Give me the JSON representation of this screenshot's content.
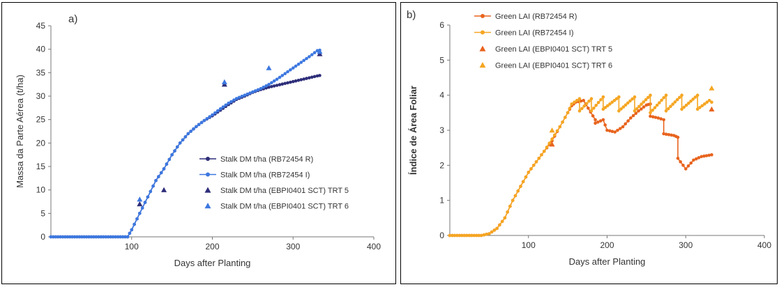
{
  "chart_data": [
    {
      "type": "line",
      "panel_label": "a)",
      "xlabel": "Days after Planting",
      "ylabel": "Massa da Parte Aérea (t/ha)",
      "xlim": [
        0,
        400
      ],
      "ylim": [
        0,
        45
      ],
      "x_ticks": [
        "100",
        "200",
        "300",
        "400"
      ],
      "y_ticks": [
        "0",
        "5",
        "10",
        "15",
        "20",
        "25",
        "30",
        "35",
        "40",
        "45"
      ],
      "grid": false,
      "legend_position": "right",
      "series": [
        {
          "name": "Stalk DM t/ha (RB72454 R)",
          "kind": "line-marker",
          "color": "#2e2e7a",
          "x": [
            0,
            50,
            95,
            100,
            110,
            120,
            130,
            140,
            150,
            160,
            170,
            180,
            190,
            200,
            210,
            220,
            230,
            240,
            250,
            260,
            270,
            280,
            290,
            300,
            310,
            320,
            330,
            333
          ],
          "y": [
            0,
            0,
            0,
            1.5,
            5,
            8.5,
            12,
            14.5,
            17.5,
            20,
            22,
            23.5,
            24.8,
            25.8,
            27,
            28.2,
            29.3,
            30,
            30.8,
            31.4,
            31.9,
            32.3,
            32.7,
            33.1,
            33.5,
            33.9,
            34.3,
            34.4
          ]
        },
        {
          "name": "Stalk DM t/ha (RB72454 I)",
          "kind": "line-marker",
          "color": "#3d78e0",
          "x": [
            0,
            50,
            95,
            100,
            110,
            120,
            130,
            140,
            150,
            160,
            170,
            180,
            190,
            200,
            210,
            220,
            230,
            240,
            250,
            260,
            270,
            280,
            290,
            300,
            310,
            320,
            330,
            333
          ],
          "y": [
            0,
            0,
            0,
            1.5,
            5,
            8.5,
            12,
            14.5,
            17.5,
            20,
            22,
            23.5,
            24.8,
            26,
            27.3,
            28.5,
            29.5,
            30.2,
            30.9,
            31.6,
            32.5,
            33.6,
            34.8,
            36,
            37.2,
            38.4,
            39.7,
            39.8
          ]
        },
        {
          "name": "Stalk DM t/ha  (EBPI0401 SCT) TRT 5",
          "kind": "triangle",
          "color": "#2e2e7a",
          "x": [
            110,
            140,
            215,
            333
          ],
          "y": [
            7,
            10,
            32.5,
            39
          ]
        },
        {
          "name": "Stalk DM t/ha  (EBPI0401 SCT) TRT 6",
          "kind": "triangle",
          "color": "#3d78e0",
          "x": [
            110,
            215,
            270,
            333
          ],
          "y": [
            8,
            33,
            36,
            39.5
          ]
        }
      ]
    },
    {
      "type": "line",
      "panel_label": "b)",
      "xlabel": "Days after Planting",
      "ylabel": "Índice de Área Foliar",
      "xlim": [
        0,
        400
      ],
      "ylim": [
        0,
        6
      ],
      "x_ticks": [
        "100",
        "200",
        "300",
        "400"
      ],
      "y_ticks": [
        "0",
        "1",
        "2",
        "3",
        "4",
        "5",
        "6"
      ],
      "grid": false,
      "legend_position": "top-left",
      "series": [
        {
          "name": "Green LAI (RB72454 R)",
          "kind": "line-marker",
          "color": "#e8641e",
          "x": [
            0,
            40,
            50,
            60,
            70,
            80,
            90,
            100,
            110,
            120,
            130,
            140,
            150,
            155,
            160,
            170,
            185,
            185,
            195,
            200,
            210,
            220,
            230,
            240,
            250,
            255,
            255,
            265,
            272,
            272,
            285,
            290,
            290,
            300,
            310,
            320,
            333
          ],
          "y": [
            0,
            0,
            0.05,
            0.2,
            0.5,
            1.0,
            1.4,
            1.8,
            2.1,
            2.4,
            2.7,
            3.1,
            3.5,
            3.7,
            3.8,
            3.85,
            3.3,
            3.2,
            3.3,
            3.0,
            2.95,
            3.1,
            3.35,
            3.55,
            3.72,
            3.75,
            3.4,
            3.35,
            3.3,
            2.9,
            2.85,
            2.8,
            2.2,
            1.9,
            2.15,
            2.25,
            2.3
          ]
        },
        {
          "name": "Green LAI (RB72454 I)",
          "kind": "line-marker",
          "color": "#f5a623",
          "x": [
            0,
            40,
            50,
            60,
            70,
            80,
            90,
            100,
            110,
            120,
            130,
            140,
            150,
            155,
            165,
            165,
            180,
            180,
            195,
            195,
            215,
            215,
            235,
            235,
            255,
            255,
            275,
            275,
            295,
            295,
            315,
            315,
            330,
            333
          ],
          "y": [
            0,
            0,
            0.05,
            0.2,
            0.5,
            1.0,
            1.4,
            1.8,
            2.1,
            2.4,
            2.75,
            3.1,
            3.5,
            3.75,
            3.9,
            3.55,
            3.9,
            3.55,
            3.95,
            3.6,
            3.95,
            3.55,
            3.95,
            3.55,
            4.0,
            3.5,
            4.0,
            3.55,
            4.0,
            3.6,
            4.0,
            3.6,
            3.85,
            3.8
          ]
        },
        {
          "name": "Green LAI      (EBPI0401 SCT) TRT 5",
          "kind": "triangle",
          "color": "#e8641e",
          "x": [
            130,
            333
          ],
          "y": [
            2.6,
            3.6
          ]
        },
        {
          "name": "Green LAI      (EBPI0401 SCT) TRT 6",
          "kind": "triangle",
          "color": "#f5a623",
          "x": [
            130,
            333
          ],
          "y": [
            3.0,
            4.2
          ]
        }
      ]
    }
  ]
}
